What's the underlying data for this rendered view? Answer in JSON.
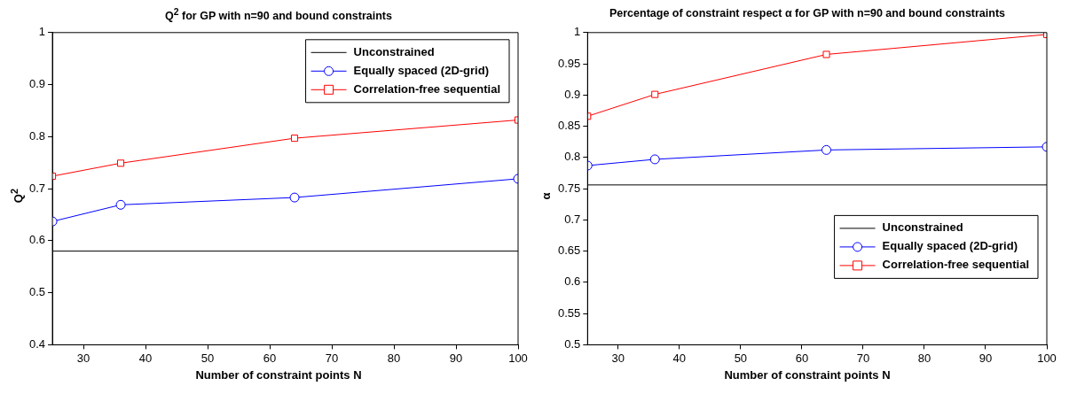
{
  "chart_data": [
    {
      "type": "line",
      "title": "Q$^{2}$ for GP with n=90 and bound constraints",
      "xlabel": "Number of constraint points N",
      "ylabel": "Q$^{2}$",
      "xlim": [
        25,
        100
      ],
      "xticks": [
        30,
        40,
        50,
        60,
        70,
        80,
        90,
        100
      ],
      "ylim": [
        0.4,
        1
      ],
      "yticks": [
        0.4,
        0.5,
        0.6,
        0.7,
        0.8,
        0.9,
        1
      ],
      "grid": false,
      "legend": "top right",
      "series": [
        {
          "name": "Unconstrained",
          "color": "#000000",
          "marker": "none",
          "x": [
            25,
            100
          ],
          "values": [
            0.58,
            0.58
          ]
        },
        {
          "name": "Equally spaced (2D-grid)",
          "color": "#0000ff",
          "marker": "circle",
          "x": [
            25,
            36,
            64,
            100
          ],
          "values": [
            0.637,
            0.669,
            0.683,
            0.719
          ]
        },
        {
          "name": "Correlation-free sequential",
          "color": "#ff0000",
          "marker": "square",
          "x": [
            25,
            36,
            64,
            100
          ],
          "values": [
            0.724,
            0.749,
            0.797,
            0.832
          ]
        }
      ]
    },
    {
      "type": "line",
      "title": "Percentage of constraint respect α for GP with n=90 and bound constraints",
      "xlabel": "Number of constraint points N",
      "ylabel": "α",
      "xlim": [
        25,
        100
      ],
      "xticks": [
        30,
        40,
        50,
        60,
        70,
        80,
        90,
        100
      ],
      "ylim": [
        0.5,
        1
      ],
      "yticks": [
        0.5,
        0.55,
        0.6,
        0.65,
        0.7,
        0.75,
        0.8,
        0.85,
        0.9,
        0.95,
        1
      ],
      "grid": false,
      "legend": "bottom right",
      "series": [
        {
          "name": "Unconstrained",
          "color": "#000000",
          "marker": "none",
          "x": [
            25,
            100
          ],
          "values": [
            0.756,
            0.756
          ]
        },
        {
          "name": "Equally spaced (2D-grid)",
          "color": "#0000ff",
          "marker": "circle",
          "x": [
            25,
            36,
            64,
            100
          ],
          "values": [
            0.787,
            0.797,
            0.812,
            0.817
          ]
        },
        {
          "name": "Correlation-free sequential",
          "color": "#ff0000",
          "marker": "square",
          "x": [
            25,
            36,
            64,
            100
          ],
          "values": [
            0.866,
            0.901,
            0.965,
            0.997
          ]
        }
      ]
    }
  ]
}
